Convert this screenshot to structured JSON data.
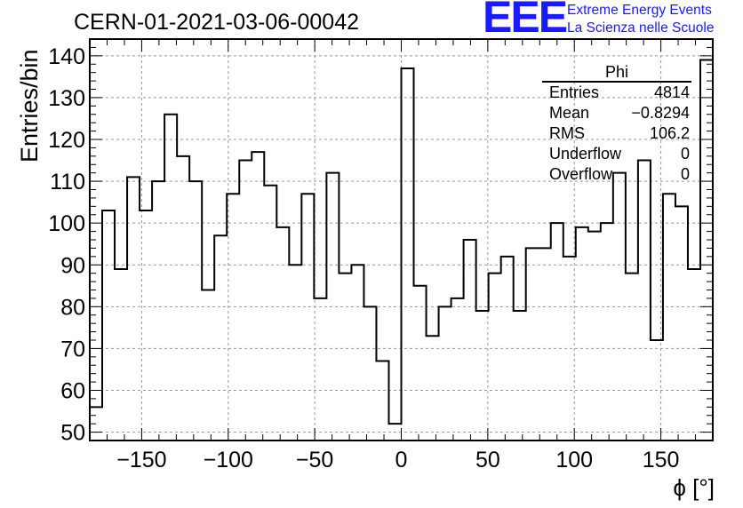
{
  "header": {
    "title": "CERN-01-2021-03-06-00042",
    "logo_text": "EEE",
    "logo_line1": "Extreme Energy Events",
    "logo_line2": "La Scienza nelle Scuole"
  },
  "stats": {
    "title": "Phi",
    "rows": [
      {
        "label": "Entries",
        "value": "4814"
      },
      {
        "label": "Mean",
        "value": "−0.8294"
      },
      {
        "label": "RMS",
        "value": "106.2"
      },
      {
        "label": "Underflow",
        "value": "0"
      },
      {
        "label": "Overflow",
        "value": "0"
      }
    ]
  },
  "chart_data": {
    "type": "bar",
    "style": "step-histogram",
    "title": "CERN-01-2021-03-06-00042",
    "xlabel": "ϕ [°]",
    "ylabel": "Entries/bin",
    "xlim": [
      -180,
      180
    ],
    "ylim": [
      48,
      144
    ],
    "bin_width": 7.2,
    "grid": true,
    "xticks": [
      -150,
      -100,
      -50,
      0,
      50,
      100,
      150
    ],
    "xtick_labels": [
      "−150",
      "−100",
      "−50",
      "0",
      "50",
      "100",
      "150"
    ],
    "yticks": [
      50,
      60,
      70,
      80,
      90,
      100,
      110,
      120,
      130,
      140
    ],
    "values": [
      56,
      103,
      89,
      111,
      103,
      110,
      126,
      116,
      110,
      84,
      97,
      107,
      115,
      117,
      109,
      99,
      90,
      107,
      82,
      112,
      88,
      90,
      80,
      67,
      52,
      137,
      85,
      73,
      80,
      82,
      96,
      79,
      88,
      92,
      79,
      94,
      94,
      100,
      92,
      99,
      98,
      100,
      112,
      88,
      115,
      72,
      107,
      104,
      89,
      139
    ]
  }
}
